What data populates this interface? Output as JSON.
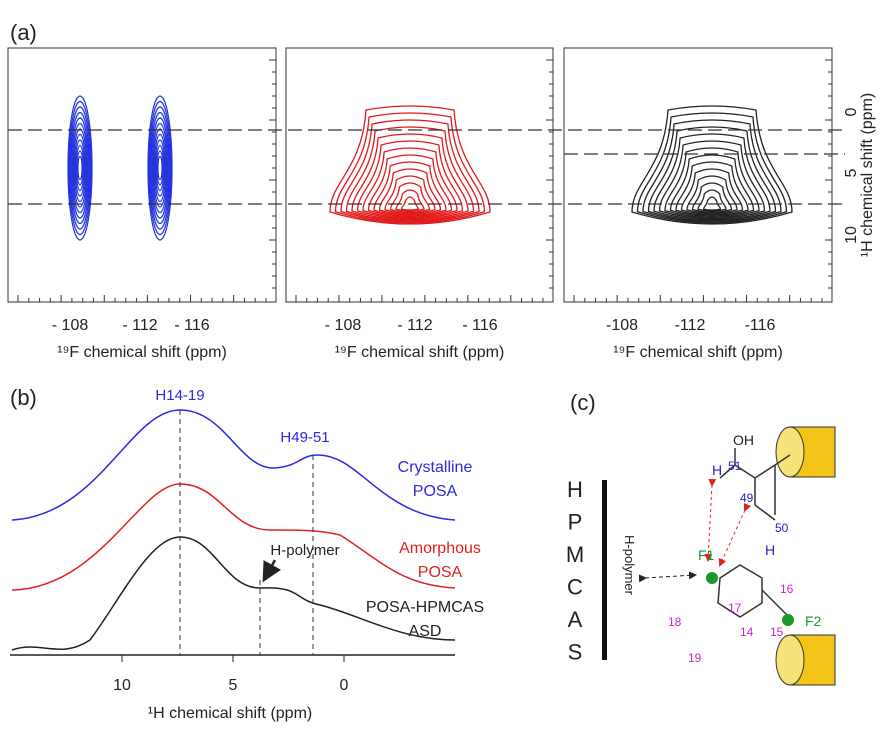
{
  "panel_a": {
    "label": "(a)",
    "plots": [
      {
        "x_ticks": [
          "- 108",
          "- 112",
          "- 116"
        ],
        "x_title": "¹⁹F chemical shift (ppm)"
      },
      {
        "x_ticks": [
          "- 108",
          "- 112",
          "- 116"
        ],
        "x_title": "¹⁹F chemical shift (ppm)"
      },
      {
        "x_ticks": [
          "-108",
          "-112",
          "-116"
        ],
        "x_title": "¹⁹F chemical shift (ppm)"
      }
    ],
    "y_ticks": [
      "0",
      "5",
      "10"
    ],
    "y_title": "¹H chemical shift (ppm)"
  },
  "panel_b": {
    "label": "(b)",
    "peaks": [
      "H14-19",
      "H49-51"
    ],
    "annotation": "H-polymer",
    "spectra": [
      {
        "name": [
          "Crystalline",
          "POSA"
        ],
        "color": "#2a2ae0"
      },
      {
        "name": [
          "Amorphous",
          "POSA"
        ],
        "color": "#e02020"
      },
      {
        "name": [
          "POSA-HPMCAS",
          "ASD"
        ],
        "color": "#222222"
      }
    ],
    "x_ticks": [
      "10",
      "5",
      "0"
    ],
    "x_title": "¹H chemical shift (ppm)"
  },
  "panel_c": {
    "label": "(c)",
    "polymer_letters": [
      "H",
      "P",
      "M",
      "C",
      "A",
      "S"
    ],
    "polymer_label": "H-polymer",
    "atoms": {
      "oh": "OH",
      "h51": "H",
      "n51": "51",
      "n49": "49",
      "n50": "50",
      "h50": "H",
      "f1": "F1",
      "f2": "F2",
      "n16": "16",
      "n17": "17",
      "n18": "18",
      "n14": "14",
      "n15": "15",
      "n19": "19"
    }
  }
}
